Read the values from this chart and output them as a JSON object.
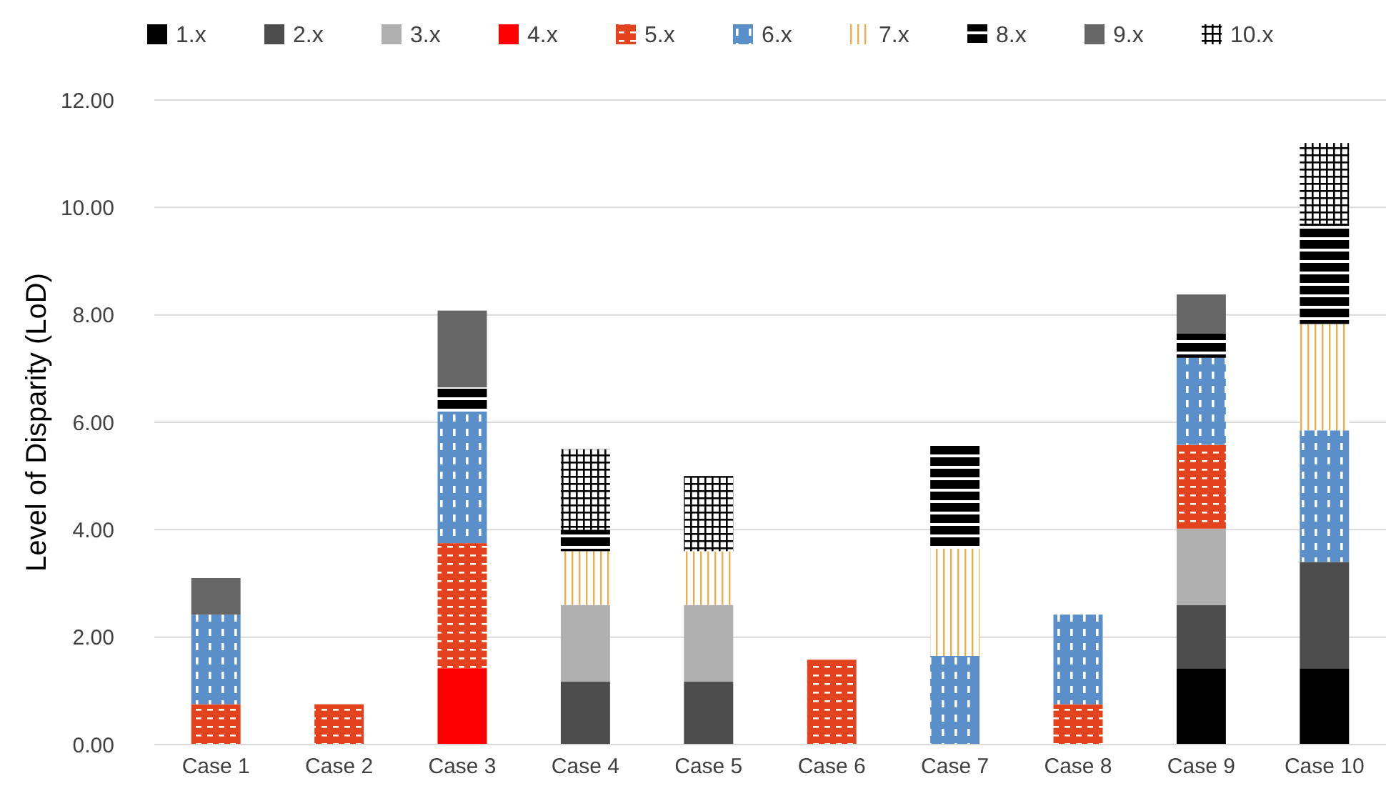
{
  "chart_data": {
    "type": "bar",
    "stacked": true,
    "ylabel": "Level of Disparity (LoD)",
    "categories": [
      "Case 1",
      "Case 2",
      "Case 3",
      "Case 4",
      "Case 5",
      "Case 6",
      "Case 7",
      "Case 8",
      "Case 9",
      "Case 10"
    ],
    "series": [
      {
        "name": "1.x",
        "color": "#000000",
        "values": [
          0,
          0,
          0,
          0,
          0,
          0,
          0,
          0,
          1.42,
          1.42
        ]
      },
      {
        "name": "2.x",
        "color": "#4d4d4d",
        "values": [
          0,
          0,
          0,
          1.17,
          1.17,
          0,
          0,
          0,
          1.18,
          1.98
        ]
      },
      {
        "name": "3.x",
        "color": "#b0b0b0",
        "values": [
          0,
          0,
          0,
          1.43,
          1.43,
          0,
          0,
          0,
          1.42,
          0
        ]
      },
      {
        "name": "4.x",
        "color": "#ff0000",
        "values": [
          0,
          0,
          1.42,
          0,
          0,
          0,
          0,
          0,
          0,
          0
        ]
      },
      {
        "name": "5.x",
        "color": "#e3421c",
        "values": [
          0.75,
          0.75,
          2.33,
          0,
          0,
          1.58,
          0,
          0.75,
          1.56,
          0
        ]
      },
      {
        "name": "6.x",
        "color": "#5b8fc9",
        "values": [
          1.67,
          0,
          2.45,
          0,
          0,
          0,
          1.65,
          1.67,
          1.62,
          2.45
        ]
      },
      {
        "name": "7.x",
        "color": "#e8b04a",
        "values": [
          0,
          0,
          0,
          1.0,
          1.0,
          0,
          2.0,
          0,
          0,
          1.98
        ]
      },
      {
        "name": "8.x",
        "color": "#000000",
        "values": [
          0,
          0,
          0.45,
          0.4,
          0,
          0,
          1.93,
          0,
          0.45,
          1.87
        ]
      },
      {
        "name": "9.x",
        "color": "#666666",
        "values": [
          0.68,
          0,
          1.43,
          0,
          0,
          0,
          0,
          0,
          0.73,
          0
        ]
      },
      {
        "name": "10.x",
        "color": "#000000",
        "values": [
          0,
          0,
          0,
          1.5,
          1.4,
          0,
          0,
          0,
          0,
          1.5
        ]
      }
    ],
    "ylim": [
      0,
      12
    ],
    "yticks": [
      {
        "value": 0,
        "label": "0.00"
      },
      {
        "value": 2,
        "label": "2.00"
      },
      {
        "value": 4,
        "label": "4.00"
      },
      {
        "value": 6,
        "label": "6.00"
      },
      {
        "value": 8,
        "label": "8.00"
      },
      {
        "value": 10,
        "label": "10.00"
      },
      {
        "value": 12,
        "label": "12.00"
      }
    ],
    "grid": "y",
    "legend": "top"
  }
}
